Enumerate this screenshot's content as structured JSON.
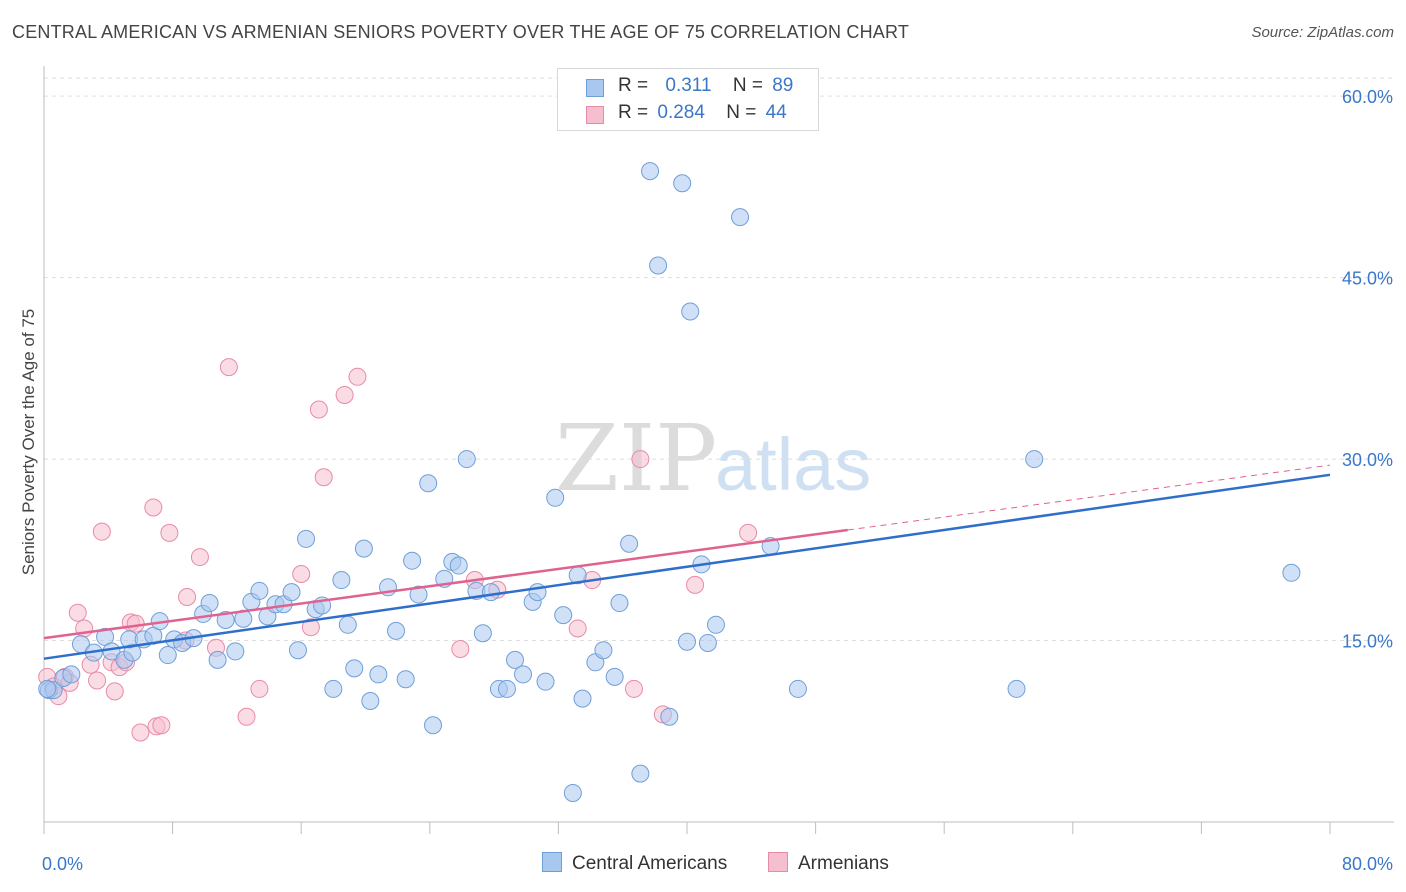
{
  "title": "CENTRAL AMERICAN VS ARMENIAN SENIORS POVERTY OVER THE AGE OF 75 CORRELATION CHART",
  "source": "Source: ZipAtlas.com",
  "watermark": {
    "zip": "ZIP",
    "atlas": "atlas"
  },
  "legend": {
    "r_label": "R =",
    "n_label": "N =",
    "central": {
      "r": "0.311",
      "n": "89"
    },
    "armenian": {
      "r": "0.284",
      "n": "44"
    }
  },
  "colors": {
    "central_fill": "#a9c8f0",
    "central_stroke": "#6f9fd8",
    "central_line": "#2f6fcb",
    "armenian_fill": "#f6bfd0",
    "armenian_stroke": "#e98aa8",
    "armenian_line": "#e0628f",
    "tick_text": "#3a77c9",
    "grid": "#dddddd"
  },
  "chart_data": {
    "type": "scatter",
    "title": "CENTRAL AMERICAN VS ARMENIAN SENIORS POVERTY OVER THE AGE OF 75 CORRELATION CHART",
    "xlabel": "",
    "ylabel": "Seniors Poverty Over the Age of 75",
    "xlim": [
      0,
      80
    ],
    "ylim": [
      0,
      61.5
    ],
    "x_tick_labels": [
      "0.0%",
      "80.0%"
    ],
    "y_ticks": [
      15,
      30,
      45,
      60
    ],
    "y_tick_labels": [
      "15.0%",
      "30.0%",
      "45.0%",
      "60.0%"
    ],
    "grid": true,
    "legend_placement": "top-center",
    "series": [
      {
        "name": "Central Americans",
        "trend": {
          "x0": 0,
          "y0": 13.5,
          "x1": 80,
          "y1": 28.7
        },
        "points": [
          [
            0.3,
            10.9
          ],
          [
            0.6,
            10.9
          ],
          [
            1.2,
            11.9
          ],
          [
            1.7,
            12.2
          ],
          [
            2.3,
            14.7
          ],
          [
            3.1,
            14.0
          ],
          [
            3.8,
            15.3
          ],
          [
            4.2,
            14.1
          ],
          [
            5.0,
            13.4
          ],
          [
            5.5,
            14.0
          ],
          [
            5.3,
            15.1
          ],
          [
            6.2,
            15.1
          ],
          [
            6.8,
            15.4
          ],
          [
            7.2,
            16.6
          ],
          [
            7.7,
            13.8
          ],
          [
            8.1,
            15.1
          ],
          [
            8.6,
            14.8
          ],
          [
            9.3,
            15.2
          ],
          [
            9.9,
            17.2
          ],
          [
            10.3,
            18.1
          ],
          [
            10.8,
            13.4
          ],
          [
            11.3,
            16.7
          ],
          [
            11.9,
            14.1
          ],
          [
            12.4,
            16.8
          ],
          [
            12.9,
            18.2
          ],
          [
            13.4,
            19.1
          ],
          [
            13.9,
            17.0
          ],
          [
            14.4,
            18.0
          ],
          [
            14.9,
            18.0
          ],
          [
            15.4,
            19.0
          ],
          [
            15.8,
            14.2
          ],
          [
            16.3,
            23.4
          ],
          [
            16.9,
            17.6
          ],
          [
            17.3,
            17.9
          ],
          [
            18.0,
            11.0
          ],
          [
            18.5,
            20.0
          ],
          [
            18.9,
            16.3
          ],
          [
            19.3,
            12.7
          ],
          [
            19.9,
            22.6
          ],
          [
            20.3,
            10.0
          ],
          [
            20.8,
            12.2
          ],
          [
            21.4,
            19.4
          ],
          [
            21.9,
            15.8
          ],
          [
            22.5,
            11.8
          ],
          [
            22.9,
            21.6
          ],
          [
            23.3,
            18.8
          ],
          [
            23.9,
            28.0
          ],
          [
            24.2,
            8.0
          ],
          [
            24.9,
            20.1
          ],
          [
            25.4,
            21.5
          ],
          [
            25.8,
            21.2
          ],
          [
            26.3,
            30.0
          ],
          [
            26.9,
            19.1
          ],
          [
            27.3,
            15.6
          ],
          [
            27.8,
            19.0
          ],
          [
            28.3,
            11.0
          ],
          [
            28.8,
            11.0
          ],
          [
            29.3,
            13.4
          ],
          [
            29.8,
            12.2
          ],
          [
            30.4,
            18.2
          ],
          [
            30.7,
            19.0
          ],
          [
            31.2,
            11.6
          ],
          [
            31.8,
            26.8
          ],
          [
            32.3,
            17.1
          ],
          [
            32.9,
            2.4
          ],
          [
            33.2,
            20.4
          ],
          [
            33.5,
            10.2
          ],
          [
            34.3,
            13.2
          ],
          [
            34.8,
            14.2
          ],
          [
            35.5,
            12.0
          ],
          [
            35.8,
            18.1
          ],
          [
            36.4,
            23.0
          ],
          [
            37.1,
            4.0
          ],
          [
            37.7,
            53.8
          ],
          [
            38.2,
            46.0
          ],
          [
            38.9,
            8.7
          ],
          [
            39.7,
            52.8
          ],
          [
            40.2,
            42.2
          ],
          [
            40.0,
            14.9
          ],
          [
            40.9,
            21.3
          ],
          [
            41.3,
            14.8
          ],
          [
            41.8,
            16.3
          ],
          [
            43.3,
            50.0
          ],
          [
            45.2,
            22.8
          ],
          [
            46.9,
            11.0
          ],
          [
            60.5,
            11.0
          ],
          [
            61.6,
            30.0
          ],
          [
            77.6,
            20.6
          ],
          [
            0.2,
            11.0
          ]
        ]
      },
      {
        "name": "Armenians",
        "trend": {
          "x0": 0,
          "y0": 15.2,
          "x1": 80,
          "y1": 29.5
        },
        "points": [
          [
            0.2,
            12.0
          ],
          [
            0.6,
            11.2
          ],
          [
            0.9,
            10.4
          ],
          [
            1.3,
            12.0
          ],
          [
            1.6,
            11.5
          ],
          [
            2.1,
            17.3
          ],
          [
            2.5,
            16.0
          ],
          [
            2.9,
            13.0
          ],
          [
            3.3,
            11.7
          ],
          [
            3.6,
            24.0
          ],
          [
            4.2,
            13.2
          ],
          [
            4.4,
            10.8
          ],
          [
            4.7,
            12.8
          ],
          [
            5.1,
            13.2
          ],
          [
            5.4,
            16.5
          ],
          [
            5.7,
            16.4
          ],
          [
            6.0,
            7.4
          ],
          [
            6.8,
            26.0
          ],
          [
            7.0,
            7.9
          ],
          [
            7.3,
            8.0
          ],
          [
            7.8,
            23.9
          ],
          [
            8.8,
            15.0
          ],
          [
            8.9,
            18.6
          ],
          [
            9.7,
            21.9
          ],
          [
            10.7,
            14.4
          ],
          [
            11.5,
            37.6
          ],
          [
            12.6,
            8.7
          ],
          [
            13.4,
            11.0
          ],
          [
            16.0,
            20.5
          ],
          [
            16.6,
            16.1
          ],
          [
            17.1,
            34.1
          ],
          [
            17.4,
            28.5
          ],
          [
            18.7,
            35.3
          ],
          [
            19.5,
            36.8
          ],
          [
            25.9,
            14.3
          ],
          [
            26.8,
            20.0
          ],
          [
            28.2,
            19.2
          ],
          [
            33.2,
            16.0
          ],
          [
            34.1,
            20.0
          ],
          [
            36.7,
            11.0
          ],
          [
            37.1,
            30.0
          ],
          [
            38.5,
            8.9
          ],
          [
            40.5,
            19.6
          ],
          [
            43.8,
            23.9
          ]
        ]
      }
    ]
  },
  "bottom_legend": {
    "central": "Central Americans",
    "armenian": "Armenians"
  }
}
